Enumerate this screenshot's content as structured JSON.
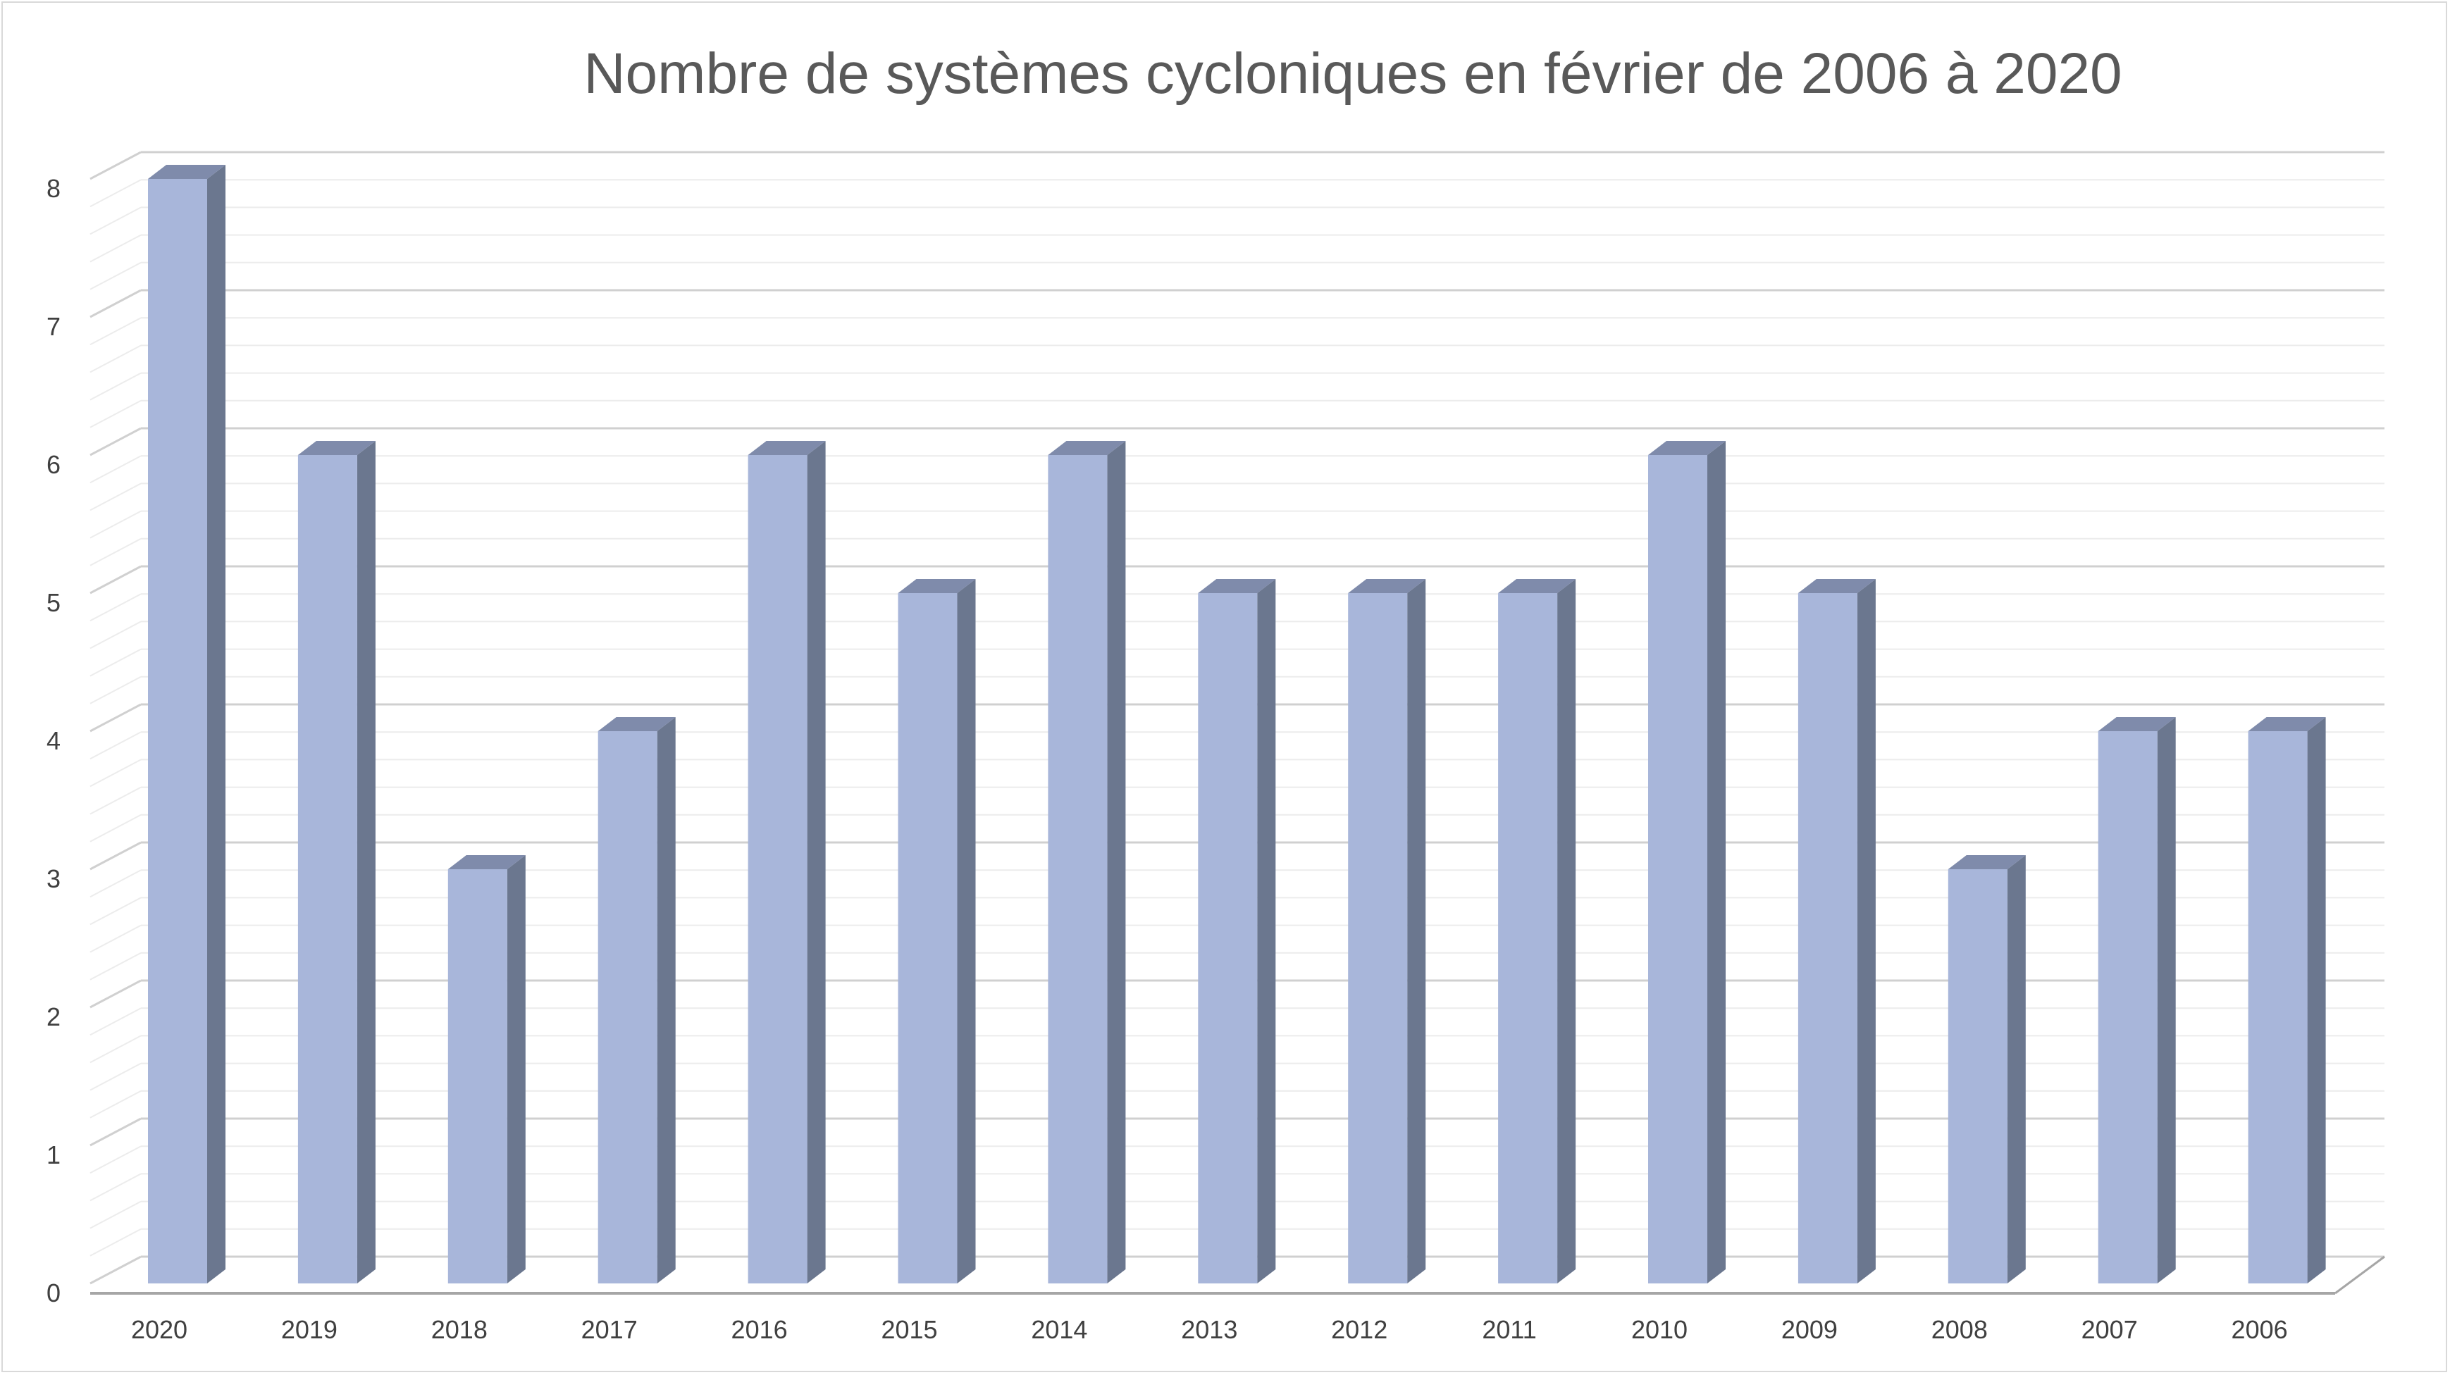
{
  "chart_data": {
    "type": "bar",
    "title": "Nombre de systèmes cycloniques en février de 2006 à 2020",
    "xlabel": "",
    "ylabel": "",
    "categories": [
      "2020",
      "2019",
      "2018",
      "2017",
      "2016",
      "2015",
      "2014",
      "2013",
      "2012",
      "2011",
      "2010",
      "2009",
      "2008",
      "2007",
      "2006"
    ],
    "values": [
      8,
      6,
      3,
      4,
      6,
      5,
      6,
      5,
      5,
      5,
      6,
      5,
      3,
      4,
      4
    ],
    "ylim": [
      0,
      8
    ],
    "yticks": [
      "0",
      "1",
      "2",
      "3",
      "4",
      "5",
      "6",
      "7",
      "8"
    ],
    "grid": true,
    "legend": "none",
    "style": "3d-column",
    "colors": {
      "bar_front": "#a8b6da",
      "bar_side": "#6b778f",
      "bar_top": "#7f8bab",
      "grid_major": "#d0d0d0",
      "grid_minor": "#ececec",
      "axis": "#a6a6a6"
    }
  }
}
